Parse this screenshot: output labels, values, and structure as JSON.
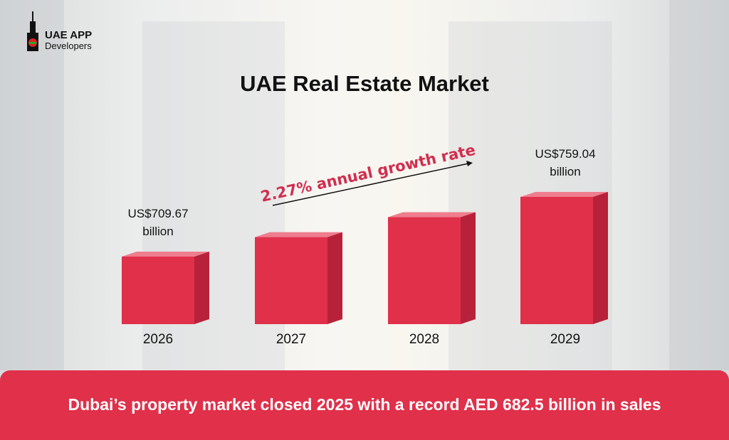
{
  "logo": {
    "line1": "UAE APP",
    "line2": "Developers"
  },
  "title": "UAE Real Estate Market",
  "chart_data": {
    "type": "bar",
    "title": "UAE Real Estate Market",
    "categories": [
      "2026",
      "2027",
      "2028",
      "2029"
    ],
    "values": [
      709.67,
      725.78,
      742.26,
      759.04
    ],
    "unit": "US$ billion",
    "data_labels": [
      {
        "category": "2026",
        "line1": "US$709.67",
        "line2": "billion"
      },
      {
        "category": "2029",
        "line1": "US$759.04",
        "line2": "billion"
      }
    ],
    "annotation": "2.27% annual growth rate",
    "grid": false,
    "bar_color": "#e0304a",
    "bar_side_color": "#b8213a"
  },
  "banner": {
    "text": "Dubai’s property market closed 2025 with a record AED 682.5 billion in sales",
    "color": "#e0304a"
  }
}
